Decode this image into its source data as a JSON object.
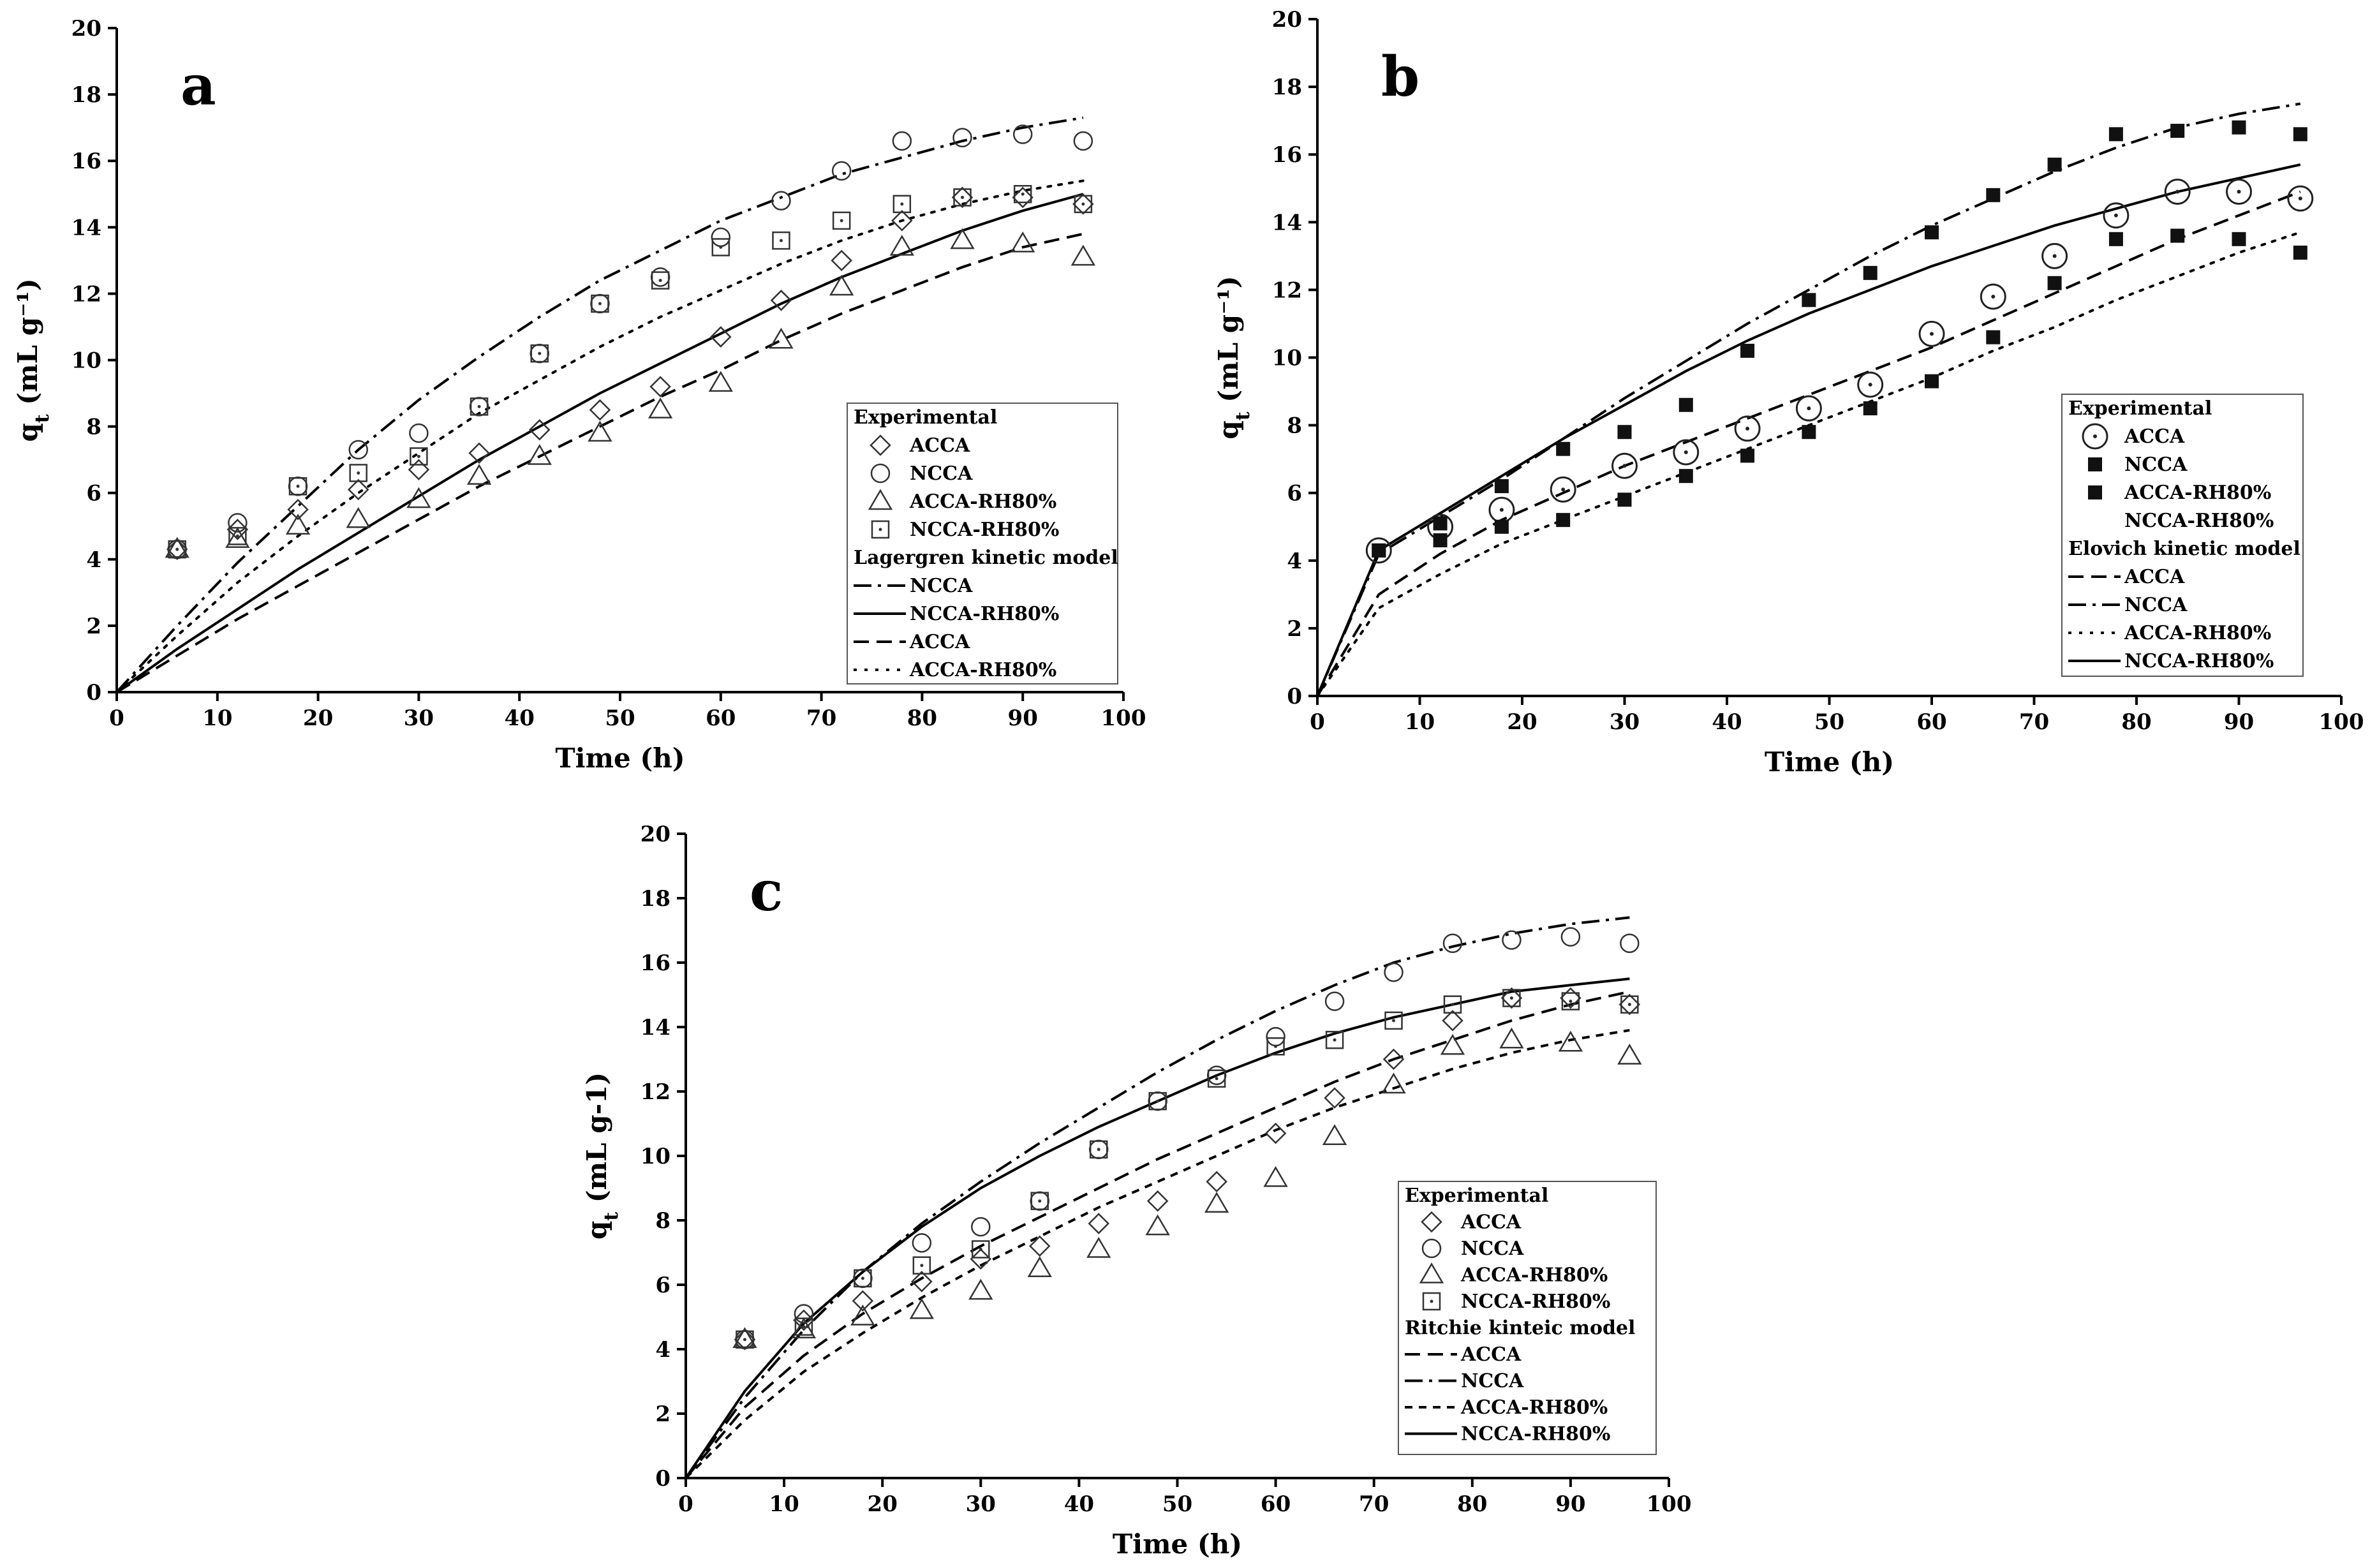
{
  "chart_data": [
    {
      "type": "scatter",
      "panel_label": "a",
      "xlabel": "Time (h)",
      "ylabel": "qt (mL g⁻¹)",
      "xlim": [
        0,
        100
      ],
      "ylim": [
        0,
        20
      ],
      "x_ticks": [
        0,
        10,
        20,
        30,
        40,
        50,
        60,
        70,
        80,
        90,
        100
      ],
      "y_ticks": [
        0,
        2,
        4,
        6,
        8,
        10,
        12,
        14,
        16,
        18,
        20
      ],
      "x": [
        6,
        12,
        18,
        24,
        30,
        36,
        42,
        48,
        54,
        60,
        66,
        72,
        78,
        84,
        90,
        96
      ],
      "series": [
        {
          "name": "ACCA",
          "marker": "diamond",
          "values": [
            4.3,
            4.9,
            5.5,
            6.1,
            6.7,
            7.2,
            7.9,
            8.5,
            9.2,
            10.7,
            11.8,
            13.0,
            14.2,
            14.9,
            14.9,
            14.7
          ]
        },
        {
          "name": "NCCA",
          "marker": "circle",
          "values": [
            4.3,
            5.1,
            6.2,
            7.3,
            7.8,
            8.6,
            10.2,
            11.7,
            12.5,
            13.7,
            14.8,
            15.7,
            16.6,
            16.7,
            16.8,
            16.6
          ]
        },
        {
          "name": "ACCA-RH80%",
          "marker": "triangle",
          "values": [
            4.3,
            4.6,
            5.0,
            5.2,
            5.8,
            6.5,
            7.1,
            7.8,
            8.5,
            9.3,
            10.6,
            12.2,
            13.4,
            13.6,
            13.5,
            13.1
          ]
        },
        {
          "name": "NCCA-RH80%",
          "marker": "square-dot",
          "values": [
            4.3,
            4.7,
            6.2,
            6.6,
            7.1,
            8.6,
            10.2,
            11.7,
            12.4,
            13.4,
            13.6,
            14.2,
            14.7,
            14.9,
            15.0,
            14.7
          ]
        }
      ],
      "models": [
        {
          "name": "NCCA",
          "dash": "dashdot",
          "x": [
            0,
            6,
            12,
            18,
            24,
            30,
            36,
            42,
            48,
            54,
            60,
            66,
            72,
            78,
            84,
            90,
            96
          ],
          "values": [
            0,
            2.0,
            3.9,
            5.6,
            7.3,
            8.8,
            10.1,
            11.3,
            12.4,
            13.3,
            14.2,
            14.9,
            15.6,
            16.1,
            16.6,
            17.0,
            17.3
          ]
        },
        {
          "name": "NCCA-RH80%",
          "dash": "solid",
          "x": [
            0,
            6,
            12,
            18,
            24,
            30,
            36,
            42,
            48,
            54,
            60,
            66,
            72,
            78,
            84,
            90,
            96
          ],
          "values": [
            0,
            1.3,
            2.5,
            3.7,
            4.8,
            5.9,
            7.0,
            8.0,
            9.0,
            9.9,
            10.8,
            11.7,
            12.5,
            13.2,
            13.9,
            14.5,
            15.0
          ]
        },
        {
          "name": "ACCA",
          "dash": "dashed",
          "x": [
            0,
            6,
            12,
            18,
            24,
            30,
            36,
            42,
            48,
            54,
            60,
            66,
            72,
            78,
            84,
            90,
            96
          ],
          "values": [
            0,
            1.1,
            2.2,
            3.2,
            4.2,
            5.2,
            6.2,
            7.1,
            8.0,
            8.9,
            9.7,
            10.6,
            11.4,
            12.1,
            12.8,
            13.4,
            13.8
          ]
        },
        {
          "name": "ACCA-RH80%",
          "dash": "dotted",
          "x": [
            0,
            6,
            12,
            18,
            24,
            30,
            36,
            42,
            48,
            54,
            60,
            66,
            72,
            78,
            84,
            90,
            96
          ],
          "values": [
            0,
            1.7,
            3.3,
            4.7,
            6.0,
            7.2,
            8.4,
            9.4,
            10.4,
            11.3,
            12.1,
            12.9,
            13.6,
            14.2,
            14.7,
            15.1,
            15.4
          ]
        }
      ],
      "legend": {
        "position": "bottom-right",
        "experimental_title": "Experimental",
        "model_title": "Lagergren kinetic model"
      }
    },
    {
      "type": "scatter",
      "panel_label": "b",
      "xlabel": "Time (h)",
      "ylabel": "qt (mL g⁻¹)",
      "xlim": [
        0,
        100
      ],
      "ylim": [
        0,
        20
      ],
      "x_ticks": [
        0,
        10,
        20,
        30,
        40,
        50,
        60,
        70,
        80,
        90,
        100
      ],
      "y_ticks": [
        0,
        2,
        4,
        6,
        8,
        10,
        12,
        14,
        16,
        18,
        20
      ],
      "x": [
        6,
        12,
        18,
        24,
        30,
        36,
        42,
        48,
        54,
        60,
        66,
        72,
        78,
        84,
        90,
        96
      ],
      "series": [
        {
          "name": "ACCA",
          "marker": "circle-dot",
          "values": [
            4.3,
            5.0,
            5.5,
            6.1,
            6.8,
            7.2,
            7.9,
            8.5,
            9.2,
            10.7,
            11.8,
            13.0,
            14.2,
            14.9,
            14.9,
            14.7
          ]
        },
        {
          "name": "NCCA",
          "marker": "filled-square",
          "values": [
            4.3,
            5.1,
            6.2,
            7.3,
            7.8,
            8.6,
            10.2,
            11.7,
            12.5,
            13.7,
            14.8,
            15.7,
            16.6,
            16.7,
            16.8,
            16.6
          ]
        },
        {
          "name": "ACCA-RH80%",
          "marker": "filled-square",
          "values": [
            4.3,
            4.6,
            5.0,
            5.2,
            5.8,
            6.5,
            7.1,
            7.8,
            8.5,
            9.3,
            10.6,
            12.2,
            13.5,
            13.6,
            13.5,
            13.1
          ]
        },
        {
          "name": "NCCA-RH80%",
          "marker": "none",
          "values": []
        }
      ],
      "models": [
        {
          "name": "ACCA",
          "dash": "dashed",
          "x": [
            0,
            6,
            12,
            18,
            24,
            30,
            36,
            42,
            48,
            54,
            60,
            66,
            72,
            78,
            84,
            90,
            96
          ],
          "values": [
            0,
            3.0,
            4.2,
            5.2,
            6.0,
            6.8,
            7.5,
            8.2,
            8.9,
            9.6,
            10.3,
            11.1,
            11.9,
            12.7,
            13.5,
            14.2,
            14.9
          ]
        },
        {
          "name": "NCCA",
          "dash": "dashdot",
          "x": [
            0,
            6,
            12,
            18,
            24,
            30,
            36,
            42,
            48,
            54,
            60,
            66,
            72,
            78,
            84,
            90,
            96
          ],
          "values": [
            0,
            4.2,
            5.3,
            6.4,
            7.6,
            8.8,
            9.9,
            11.0,
            12.0,
            13.0,
            13.9,
            14.7,
            15.5,
            16.2,
            16.8,
            17.2,
            17.5
          ]
        },
        {
          "name": "ACCA-RH80%",
          "dash": "dotted",
          "x": [
            0,
            6,
            12,
            18,
            24,
            30,
            36,
            42,
            48,
            54,
            60,
            66,
            72,
            78,
            84,
            90,
            96
          ],
          "values": [
            0,
            2.6,
            3.6,
            4.5,
            5.2,
            5.9,
            6.6,
            7.3,
            8.0,
            8.7,
            9.4,
            10.2,
            10.9,
            11.7,
            12.4,
            13.1,
            13.7
          ]
        },
        {
          "name": "NCCA-RH80%",
          "dash": "solid",
          "x": [
            0,
            6,
            12,
            18,
            24,
            30,
            36,
            42,
            48,
            54,
            60,
            66,
            72,
            78,
            84,
            90,
            96
          ],
          "values": [
            0,
            4.3,
            5.4,
            6.5,
            7.6,
            8.6,
            9.6,
            10.5,
            11.3,
            12.0,
            12.7,
            13.3,
            13.9,
            14.4,
            14.9,
            15.3,
            15.7
          ]
        }
      ],
      "legend": {
        "position": "bottom-right",
        "experimental_title": "Experimental",
        "model_title": "Elovich kinetic model"
      }
    },
    {
      "type": "scatter",
      "panel_label": "c",
      "xlabel": "Time (h)",
      "ylabel": "qt (mL g-1)",
      "xlim": [
        0,
        100
      ],
      "ylim": [
        0,
        20
      ],
      "x_ticks": [
        0,
        10,
        20,
        30,
        40,
        50,
        60,
        70,
        80,
        90,
        100
      ],
      "y_ticks": [
        0,
        2,
        4,
        6,
        8,
        10,
        12,
        14,
        16,
        18,
        20
      ],
      "x": [
        6,
        12,
        18,
        24,
        30,
        36,
        42,
        48,
        54,
        60,
        66,
        72,
        78,
        84,
        90,
        96
      ],
      "series": [
        {
          "name": "ACCA",
          "marker": "diamond",
          "values": [
            4.3,
            4.9,
            5.5,
            6.1,
            6.8,
            7.2,
            7.9,
            8.6,
            9.2,
            10.7,
            11.8,
            13.0,
            14.2,
            14.9,
            14.9,
            14.7
          ]
        },
        {
          "name": "NCCA",
          "marker": "circle",
          "values": [
            4.3,
            5.1,
            6.2,
            7.3,
            7.8,
            8.6,
            10.2,
            11.7,
            12.5,
            13.7,
            14.8,
            15.7,
            16.6,
            16.7,
            16.8,
            16.6
          ]
        },
        {
          "name": "ACCA-RH80%",
          "marker": "triangle",
          "values": [
            4.3,
            4.6,
            5.0,
            5.2,
            5.8,
            6.5,
            7.1,
            7.8,
            8.5,
            9.3,
            10.6,
            12.2,
            13.4,
            13.6,
            13.5,
            13.1
          ]
        },
        {
          "name": "NCCA-RH80%",
          "marker": "square-dot",
          "values": [
            4.3,
            4.7,
            6.2,
            6.6,
            7.1,
            8.6,
            10.2,
            11.7,
            12.4,
            13.4,
            13.6,
            14.2,
            14.7,
            14.9,
            14.8,
            14.7
          ]
        }
      ],
      "models": [
        {
          "name": "ACCA",
          "dash": "dashed",
          "x": [
            0,
            6,
            12,
            18,
            24,
            30,
            36,
            42,
            48,
            54,
            60,
            66,
            72,
            78,
            84,
            90,
            96
          ],
          "values": [
            0,
            2.2,
            3.8,
            5.1,
            6.2,
            7.2,
            8.1,
            9.0,
            9.9,
            10.7,
            11.5,
            12.3,
            13.0,
            13.6,
            14.2,
            14.7,
            15.1
          ]
        },
        {
          "name": "NCCA",
          "dash": "dashdot",
          "x": [
            0,
            6,
            12,
            18,
            24,
            30,
            36,
            42,
            48,
            54,
            60,
            66,
            72,
            78,
            84,
            90,
            96
          ],
          "values": [
            0,
            2.5,
            4.6,
            6.4,
            7.9,
            9.2,
            10.4,
            11.5,
            12.6,
            13.6,
            14.5,
            15.3,
            16.0,
            16.5,
            16.9,
            17.2,
            17.4
          ]
        },
        {
          "name": "ACCA-RH80%",
          "dash": "shortdash",
          "x": [
            0,
            6,
            12,
            18,
            24,
            30,
            36,
            42,
            48,
            54,
            60,
            66,
            72,
            78,
            84,
            90,
            96
          ],
          "values": [
            0,
            1.8,
            3.3,
            4.5,
            5.6,
            6.6,
            7.5,
            8.4,
            9.2,
            10.0,
            10.8,
            11.5,
            12.1,
            12.7,
            13.2,
            13.6,
            13.9
          ]
        },
        {
          "name": "NCCA-RH80%",
          "dash": "solid",
          "x": [
            0,
            6,
            12,
            18,
            24,
            30,
            36,
            42,
            48,
            54,
            60,
            66,
            72,
            78,
            84,
            90,
            96
          ],
          "values": [
            0,
            2.7,
            4.8,
            6.4,
            7.8,
            9.0,
            10.0,
            10.9,
            11.7,
            12.5,
            13.2,
            13.8,
            14.3,
            14.7,
            15.1,
            15.3,
            15.5
          ]
        }
      ],
      "legend": {
        "position": "bottom-right",
        "experimental_title": "Experimental",
        "model_title": "Ritchie kinteic model"
      }
    }
  ]
}
